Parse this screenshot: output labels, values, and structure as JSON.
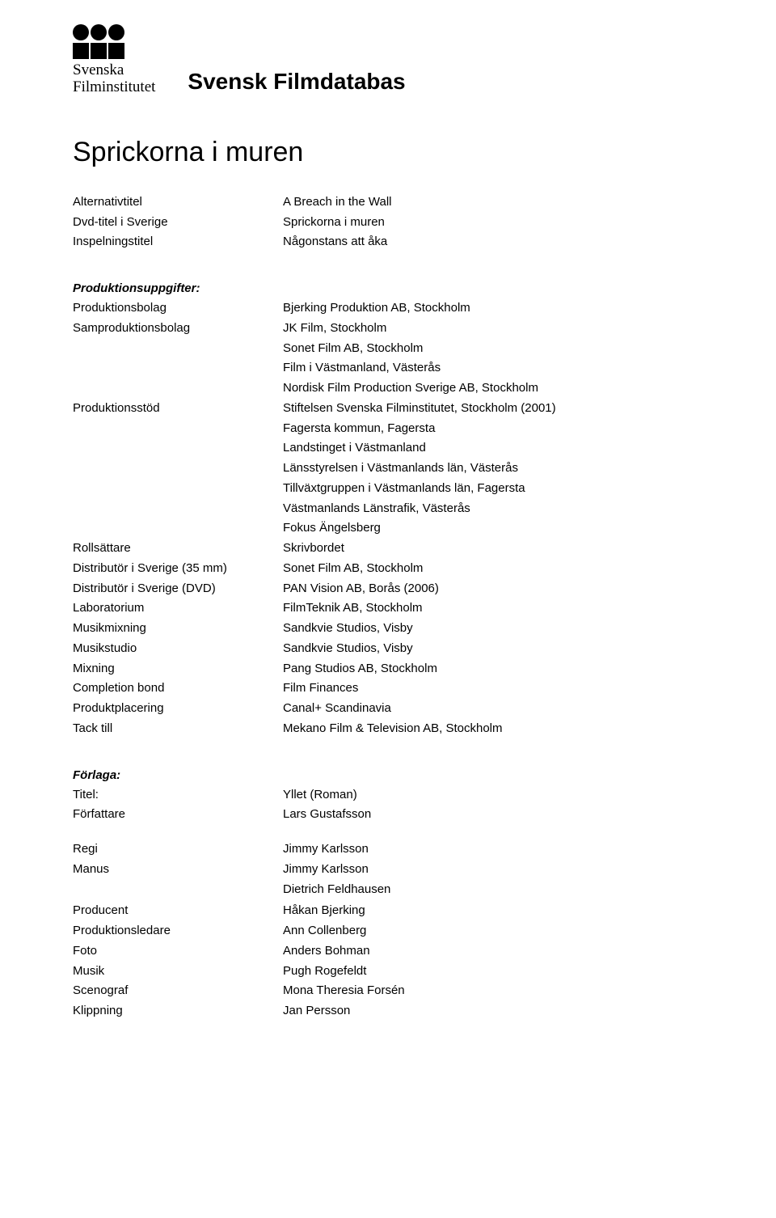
{
  "header": {
    "logo_line1": "Svenska",
    "logo_line2": "Filminstitutet",
    "db_title": "Svensk Filmdatabas"
  },
  "film_title": "Sprickorna i muren",
  "titles_block": [
    {
      "label": "Alternativtitel",
      "values": [
        "A Breach in the Wall"
      ]
    },
    {
      "label": "Dvd-titel i Sverige",
      "values": [
        "Sprickorna i muren"
      ]
    },
    {
      "label": "Inspelningstitel",
      "values": [
        "Någonstans att åka"
      ]
    }
  ],
  "production_heading": "Produktionsuppgifter:",
  "production_block": [
    {
      "label": "Produktionsbolag",
      "values": [
        "Bjerking Produktion AB, Stockholm"
      ]
    },
    {
      "label": "Samproduktionsbolag",
      "values": [
        "JK Film, Stockholm",
        "Sonet Film AB, Stockholm",
        "Film i Västmanland, Västerås",
        "Nordisk Film Production Sverige AB, Stockholm"
      ]
    },
    {
      "label": "Produktionsstöd",
      "values": [
        "Stiftelsen Svenska Filminstitutet, Stockholm (2001)",
        "Fagersta kommun, Fagersta",
        "Landstinget i Västmanland",
        "Länsstyrelsen i Västmanlands län, Västerås",
        "Tillväxtgruppen i Västmanlands län, Fagersta",
        "Västmanlands Länstrafik, Västerås",
        "Fokus Ängelsberg"
      ]
    },
    {
      "label": "Rollsättare",
      "values": [
        "Skrivbordet"
      ]
    },
    {
      "label": "Distributör i Sverige (35 mm)",
      "values": [
        "Sonet Film AB, Stockholm"
      ]
    },
    {
      "label": "Distributör i Sverige (DVD)",
      "values": [
        "PAN Vision AB, Borås (2006)"
      ]
    },
    {
      "label": "Laboratorium",
      "values": [
        "FilmTeknik AB, Stockholm"
      ]
    },
    {
      "label": "Musikmixning",
      "values": [
        "Sandkvie Studios, Visby"
      ]
    },
    {
      "label": "Musikstudio",
      "values": [
        "Sandkvie Studios, Visby"
      ]
    },
    {
      "label": "Mixning",
      "values": [
        "Pang Studios AB, Stockholm"
      ]
    },
    {
      "label": "Completion bond",
      "values": [
        "Film Finances"
      ]
    },
    {
      "label": "Produktplacering",
      "values": [
        "Canal+ Scandinavia"
      ]
    },
    {
      "label": "Tack till",
      "values": [
        "Mekano Film & Television AB, Stockholm"
      ]
    }
  ],
  "source_heading": "Förlaga:",
  "source_block": [
    {
      "label": "Titel:",
      "values": [
        "Yllet (Roman)"
      ]
    },
    {
      "label": "Författare",
      "values": [
        "Lars Gustafsson"
      ]
    }
  ],
  "crew_block_1": [
    {
      "label": "Regi",
      "values": [
        "Jimmy Karlsson"
      ]
    },
    {
      "label": "Manus",
      "values": [
        "Jimmy Karlsson",
        "Dietrich Feldhausen"
      ]
    }
  ],
  "crew_block_2": [
    {
      "label": "Producent",
      "values": [
        "Håkan Bjerking"
      ]
    },
    {
      "label": "Produktionsledare",
      "values": [
        "Ann Collenberg"
      ]
    },
    {
      "label": "Foto",
      "values": [
        "Anders Bohman"
      ]
    },
    {
      "label": "Musik",
      "values": [
        "Pugh Rogefeldt"
      ]
    },
    {
      "label": "Scenograf",
      "values": [
        "Mona Theresia Forsén"
      ]
    },
    {
      "label": "Klippning",
      "values": [
        "Jan Persson"
      ]
    }
  ]
}
